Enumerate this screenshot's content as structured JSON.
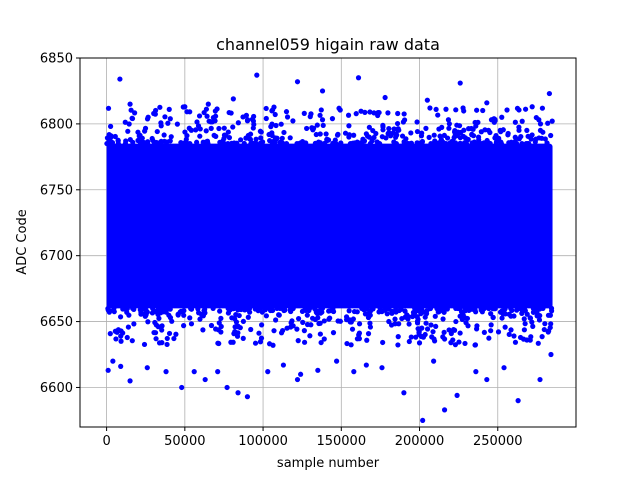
{
  "chart_data": {
    "type": "scatter",
    "title": "channel059 higain raw data",
    "xlabel": "sample number",
    "ylabel": "ADC Code",
    "xlim": [
      -17000,
      300000
    ],
    "ylim": [
      6570,
      6850
    ],
    "xticks": [
      0,
      50000,
      100000,
      150000,
      200000,
      250000
    ],
    "xtick_labels": [
      "0",
      "50000",
      "100000",
      "150000",
      "200000",
      "250000"
    ],
    "yticks": [
      6600,
      6650,
      6700,
      6750,
      6800,
      6850
    ],
    "ytick_labels": [
      "6600",
      "6650",
      "6700",
      "6750",
      "6800",
      "6850"
    ],
    "grid": true,
    "marker_color": "#0000ff",
    "marker": "filled-circle",
    "dense_band": {
      "x_range": [
        0,
        285000
      ],
      "y_range": [
        6660,
        6785
      ]
    },
    "series": [
      {
        "points": [
          [
            8500,
            6834
          ],
          [
            96000,
            6837
          ],
          [
            122000,
            6832
          ],
          [
            161000,
            6835
          ],
          [
            226000,
            6831
          ],
          [
            283000,
            6823
          ],
          [
            81000,
            6819
          ],
          [
            178000,
            6820
          ],
          [
            138000,
            6825
          ],
          [
            243000,
            6816
          ],
          [
            65000,
            6815
          ],
          [
            15000,
            6815
          ],
          [
            50000,
            6813
          ],
          [
            205000,
            6818
          ],
          [
            272000,
            6813
          ],
          [
            1000,
            6613
          ],
          [
            4000,
            6620
          ],
          [
            9000,
            6616
          ],
          [
            15000,
            6605
          ],
          [
            26000,
            6615
          ],
          [
            38000,
            6612
          ],
          [
            48000,
            6600
          ],
          [
            56000,
            6612
          ],
          [
            63000,
            6606
          ],
          [
            71000,
            6612
          ],
          [
            77000,
            6600
          ],
          [
            84000,
            6596
          ],
          [
            90000,
            6593
          ],
          [
            103000,
            6612
          ],
          [
            113000,
            6617
          ],
          [
            122000,
            6606
          ],
          [
            124000,
            6610
          ],
          [
            135000,
            6613
          ],
          [
            147000,
            6620
          ],
          [
            158000,
            6612
          ],
          [
            166000,
            6617
          ],
          [
            176000,
            6615
          ],
          [
            190000,
            6596
          ],
          [
            202000,
            6575
          ],
          [
            209000,
            6620
          ],
          [
            216000,
            6583
          ],
          [
            224000,
            6594
          ],
          [
            236000,
            6612
          ],
          [
            243000,
            6606
          ],
          [
            254000,
            6615
          ],
          [
            263000,
            6590
          ],
          [
            277000,
            6606
          ],
          [
            284000,
            6625
          ]
        ]
      }
    ]
  }
}
